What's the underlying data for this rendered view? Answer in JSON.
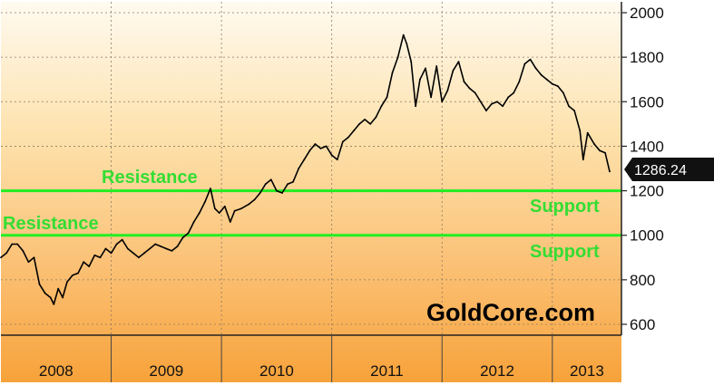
{
  "chart_data": {
    "type": "line",
    "title": "",
    "xlabel": "",
    "ylabel": "",
    "x_ticks": [
      "2008",
      "2009",
      "2010",
      "2011",
      "2012",
      "2013"
    ],
    "y_ticks": [
      "600",
      "800",
      "1000",
      "1200",
      "1400",
      "1600",
      "1800",
      "2000"
    ],
    "ylim": [
      560,
      2040
    ],
    "xlim": [
      2008.0,
      2013.65
    ],
    "grid": true,
    "last_value_label": "1286.24",
    "series": [
      {
        "values": [
          [
            2008.0,
            900
          ],
          [
            2008.05,
            920
          ],
          [
            2008.1,
            960
          ],
          [
            2008.15,
            960
          ],
          [
            2008.2,
            930
          ],
          [
            2008.25,
            880
          ],
          [
            2008.3,
            900
          ],
          [
            2008.35,
            780
          ],
          [
            2008.4,
            740
          ],
          [
            2008.45,
            720
          ],
          [
            2008.48,
            690
          ],
          [
            2008.52,
            760
          ],
          [
            2008.56,
            720
          ],
          [
            2008.6,
            790
          ],
          [
            2008.65,
            820
          ],
          [
            2008.7,
            830
          ],
          [
            2008.75,
            880
          ],
          [
            2008.8,
            860
          ],
          [
            2008.85,
            910
          ],
          [
            2008.9,
            900
          ],
          [
            2008.95,
            940
          ],
          [
            2009.0,
            920
          ],
          [
            2009.05,
            960
          ],
          [
            2009.1,
            980
          ],
          [
            2009.15,
            940
          ],
          [
            2009.2,
            920
          ],
          [
            2009.25,
            900
          ],
          [
            2009.3,
            920
          ],
          [
            2009.35,
            940
          ],
          [
            2009.4,
            960
          ],
          [
            2009.45,
            950
          ],
          [
            2009.5,
            940
          ],
          [
            2009.55,
            930
          ],
          [
            2009.6,
            950
          ],
          [
            2009.65,
            990
          ],
          [
            2009.7,
            1010
          ],
          [
            2009.75,
            1060
          ],
          [
            2009.8,
            1100
          ],
          [
            2009.85,
            1150
          ],
          [
            2009.9,
            1210
          ],
          [
            2009.94,
            1120
          ],
          [
            2009.98,
            1100
          ],
          [
            2010.03,
            1130
          ],
          [
            2010.08,
            1060
          ],
          [
            2010.12,
            1110
          ],
          [
            2010.18,
            1120
          ],
          [
            2010.25,
            1140
          ],
          [
            2010.3,
            1160
          ],
          [
            2010.35,
            1190
          ],
          [
            2010.4,
            1230
          ],
          [
            2010.45,
            1250
          ],
          [
            2010.5,
            1200
          ],
          [
            2010.55,
            1190
          ],
          [
            2010.6,
            1230
          ],
          [
            2010.65,
            1240
          ],
          [
            2010.7,
            1300
          ],
          [
            2010.75,
            1340
          ],
          [
            2010.8,
            1380
          ],
          [
            2010.85,
            1410
          ],
          [
            2010.9,
            1390
          ],
          [
            2010.95,
            1400
          ],
          [
            2011.0,
            1360
          ],
          [
            2011.05,
            1340
          ],
          [
            2011.1,
            1420
          ],
          [
            2011.15,
            1440
          ],
          [
            2011.2,
            1470
          ],
          [
            2011.25,
            1500
          ],
          [
            2011.3,
            1520
          ],
          [
            2011.35,
            1500
          ],
          [
            2011.4,
            1530
          ],
          [
            2011.45,
            1580
          ],
          [
            2011.5,
            1620
          ],
          [
            2011.55,
            1730
          ],
          [
            2011.6,
            1800
          ],
          [
            2011.65,
            1900
          ],
          [
            2011.68,
            1860
          ],
          [
            2011.72,
            1780
          ],
          [
            2011.76,
            1580
          ],
          [
            2011.8,
            1700
          ],
          [
            2011.85,
            1750
          ],
          [
            2011.9,
            1620
          ],
          [
            2011.95,
            1760
          ],
          [
            2012.0,
            1600
          ],
          [
            2012.05,
            1650
          ],
          [
            2012.1,
            1740
          ],
          [
            2012.15,
            1780
          ],
          [
            2012.2,
            1690
          ],
          [
            2012.25,
            1660
          ],
          [
            2012.3,
            1640
          ],
          [
            2012.35,
            1600
          ],
          [
            2012.4,
            1560
          ],
          [
            2012.45,
            1590
          ],
          [
            2012.5,
            1600
          ],
          [
            2012.55,
            1580
          ],
          [
            2012.6,
            1620
          ],
          [
            2012.65,
            1640
          ],
          [
            2012.7,
            1690
          ],
          [
            2012.75,
            1770
          ],
          [
            2012.8,
            1790
          ],
          [
            2012.85,
            1750
          ],
          [
            2012.9,
            1720
          ],
          [
            2012.95,
            1700
          ],
          [
            2013.0,
            1680
          ],
          [
            2013.05,
            1670
          ],
          [
            2013.1,
            1640
          ],
          [
            2013.15,
            1580
          ],
          [
            2013.2,
            1560
          ],
          [
            2013.25,
            1470
          ],
          [
            2013.28,
            1340
          ],
          [
            2013.32,
            1460
          ],
          [
            2013.38,
            1410
          ],
          [
            2013.43,
            1380
          ],
          [
            2013.48,
            1370
          ],
          [
            2013.52,
            1286
          ]
        ]
      }
    ],
    "hlines": [
      {
        "value": 1200,
        "color": "#22ee22"
      },
      {
        "value": 1000,
        "color": "#22ee22"
      }
    ],
    "annotations": [
      {
        "text": "Resistance",
        "color": "#33dd33"
      },
      {
        "text": "Resistance",
        "color": "#33dd33"
      },
      {
        "text": "Support",
        "color": "#33dd33"
      },
      {
        "text": "Support",
        "color": "#33dd33"
      }
    ],
    "watermark": "GoldCore.com"
  }
}
